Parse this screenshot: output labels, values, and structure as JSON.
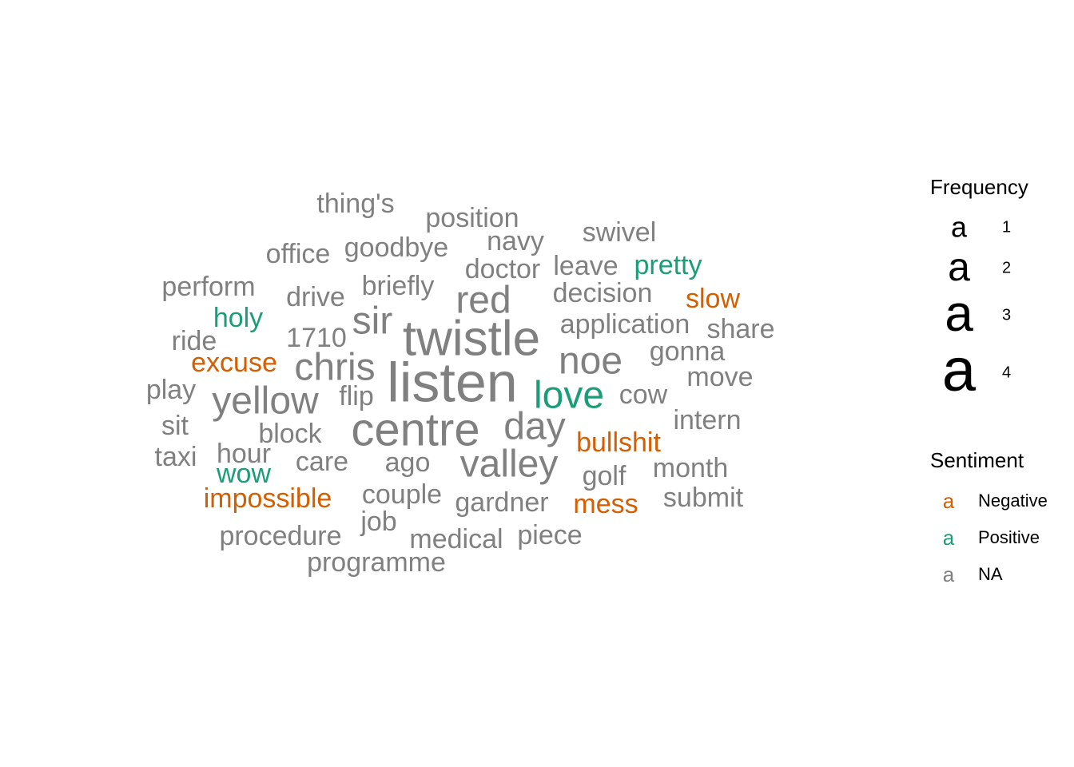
{
  "chart_data": {
    "type": "wordcloud",
    "colors": {
      "Negative": "#D55E00",
      "Positive": "#1B9E77",
      "NA": "#808080"
    },
    "words": [
      {
        "text": "listen",
        "freq": 4,
        "sentiment": "NA"
      },
      {
        "text": "twistle",
        "freq": 4,
        "sentiment": "NA"
      },
      {
        "text": "centre",
        "freq": 4,
        "sentiment": "NA"
      },
      {
        "text": "valley",
        "freq": 3,
        "sentiment": "NA"
      },
      {
        "text": "day",
        "freq": 3,
        "sentiment": "NA"
      },
      {
        "text": "noe",
        "freq": 3,
        "sentiment": "NA"
      },
      {
        "text": "chris",
        "freq": 3,
        "sentiment": "NA"
      },
      {
        "text": "yellow",
        "freq": 3,
        "sentiment": "NA"
      },
      {
        "text": "sir",
        "freq": 3,
        "sentiment": "NA"
      },
      {
        "text": "red",
        "freq": 3,
        "sentiment": "NA"
      },
      {
        "text": "love",
        "freq": 3,
        "sentiment": "Positive"
      },
      {
        "text": "thing's",
        "freq": 2,
        "sentiment": "NA"
      },
      {
        "text": "position",
        "freq": 2,
        "sentiment": "NA"
      },
      {
        "text": "swivel",
        "freq": 2,
        "sentiment": "NA"
      },
      {
        "text": "navy",
        "freq": 2,
        "sentiment": "NA"
      },
      {
        "text": "goodbye",
        "freq": 2,
        "sentiment": "NA"
      },
      {
        "text": "office",
        "freq": 2,
        "sentiment": "NA"
      },
      {
        "text": "doctor",
        "freq": 2,
        "sentiment": "NA"
      },
      {
        "text": "leave",
        "freq": 2,
        "sentiment": "NA"
      },
      {
        "text": "pretty",
        "freq": 2,
        "sentiment": "Positive"
      },
      {
        "text": "perform",
        "freq": 2,
        "sentiment": "NA"
      },
      {
        "text": "briefly",
        "freq": 2,
        "sentiment": "NA"
      },
      {
        "text": "drive",
        "freq": 2,
        "sentiment": "NA"
      },
      {
        "text": "decision",
        "freq": 2,
        "sentiment": "NA"
      },
      {
        "text": "slow",
        "freq": 2,
        "sentiment": "Negative"
      },
      {
        "text": "holy",
        "freq": 2,
        "sentiment": "Positive"
      },
      {
        "text": "application",
        "freq": 2,
        "sentiment": "NA"
      },
      {
        "text": "share",
        "freq": 2,
        "sentiment": "NA"
      },
      {
        "text": "ride",
        "freq": 2,
        "sentiment": "NA"
      },
      {
        "text": "1710",
        "freq": 2,
        "sentiment": "NA"
      },
      {
        "text": "gonna",
        "freq": 2,
        "sentiment": "NA"
      },
      {
        "text": "excuse",
        "freq": 2,
        "sentiment": "Negative"
      },
      {
        "text": "move",
        "freq": 2,
        "sentiment": "NA"
      },
      {
        "text": "play",
        "freq": 2,
        "sentiment": "NA"
      },
      {
        "text": "flip",
        "freq": 2,
        "sentiment": "NA"
      },
      {
        "text": "cow",
        "freq": 2,
        "sentiment": "NA"
      },
      {
        "text": "sit",
        "freq": 2,
        "sentiment": "NA"
      },
      {
        "text": "intern",
        "freq": 2,
        "sentiment": "NA"
      },
      {
        "text": "block",
        "freq": 2,
        "sentiment": "NA"
      },
      {
        "text": "bullshit",
        "freq": 2,
        "sentiment": "Negative"
      },
      {
        "text": "taxi",
        "freq": 2,
        "sentiment": "NA"
      },
      {
        "text": "hour",
        "freq": 2,
        "sentiment": "NA"
      },
      {
        "text": "care",
        "freq": 2,
        "sentiment": "NA"
      },
      {
        "text": "ago",
        "freq": 2,
        "sentiment": "NA"
      },
      {
        "text": "month",
        "freq": 2,
        "sentiment": "NA"
      },
      {
        "text": "wow",
        "freq": 2,
        "sentiment": "Positive"
      },
      {
        "text": "golf",
        "freq": 2,
        "sentiment": "NA"
      },
      {
        "text": "impossible",
        "freq": 2,
        "sentiment": "Negative"
      },
      {
        "text": "couple",
        "freq": 2,
        "sentiment": "NA"
      },
      {
        "text": "submit",
        "freq": 2,
        "sentiment": "NA"
      },
      {
        "text": "gardner",
        "freq": 2,
        "sentiment": "NA"
      },
      {
        "text": "mess",
        "freq": 2,
        "sentiment": "Negative"
      },
      {
        "text": "job",
        "freq": 2,
        "sentiment": "NA"
      },
      {
        "text": "procedure",
        "freq": 2,
        "sentiment": "NA"
      },
      {
        "text": "piece",
        "freq": 2,
        "sentiment": "NA"
      },
      {
        "text": "medical",
        "freq": 2,
        "sentiment": "NA"
      },
      {
        "text": "programme",
        "freq": 2,
        "sentiment": "NA"
      }
    ],
    "legend": {
      "frequency": {
        "title": "Frequency",
        "glyph": "a",
        "entries": [
          {
            "label": "1",
            "freq": 1
          },
          {
            "label": "2",
            "freq": 2
          },
          {
            "label": "3",
            "freq": 3
          },
          {
            "label": "4",
            "freq": 4
          }
        ]
      },
      "sentiment": {
        "title": "Sentiment",
        "glyph": "a",
        "entries": [
          {
            "label": "Negative",
            "key": "Negative"
          },
          {
            "label": "Positive",
            "key": "Positive"
          },
          {
            "label": "NA",
            "key": "NA"
          }
        ]
      },
      "placement": "right"
    }
  }
}
